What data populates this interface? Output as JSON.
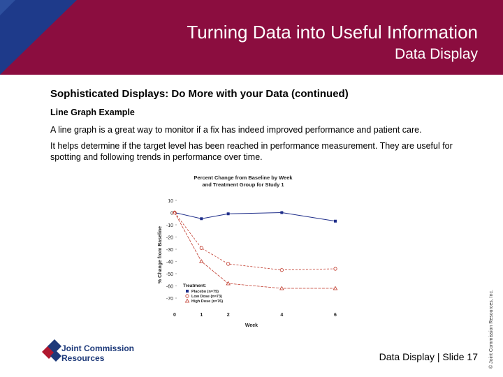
{
  "header": {
    "title": "Turning Data into Useful Information",
    "subtitle": "Data Display"
  },
  "content": {
    "heading": "Sophisticated Displays: Do More with your Data (continued)",
    "subheading": "Line Graph Example",
    "paragraph1": "A line graph is a great way to monitor if a fix has indeed improved performance and patient care.",
    "paragraph2": "It helps determine if the target level has been reached in performance measurement. They are useful for spotting and following trends in performance over time."
  },
  "chart_data": {
    "type": "line",
    "title_line1": "Percent Change from Baseline by Week",
    "title_line2": "and Treatment Group for Study 1",
    "xlabel": "Week",
    "ylabel": "% Change from Baseline",
    "x": [
      0,
      1,
      2,
      4,
      6
    ],
    "x_ticks": [
      "0",
      "1",
      "2",
      "4",
      "6"
    ],
    "y_ticks": [
      "10",
      "0",
      "-10",
      "-20",
      "-30",
      "-40",
      "-50",
      "-60",
      "-70"
    ],
    "ylim": [
      -70,
      10
    ],
    "legend_title": "Treatment:",
    "legend_placement": "bottom-left",
    "series": [
      {
        "name": "Placebo (n=75)",
        "values": [
          0,
          -5,
          -1,
          0,
          -7
        ],
        "color": "#1f2e8a",
        "marker": "square"
      },
      {
        "name": "Low Dose (n=73)",
        "values": [
          0,
          -29,
          -42,
          -47,
          -46
        ],
        "color": "#c0392b",
        "marker": "circle"
      },
      {
        "name": "High Dose (n=76)",
        "values": [
          0,
          -40,
          -58,
          -62,
          -62
        ],
        "color": "#c0392b",
        "marker": "triangle"
      }
    ]
  },
  "footer": {
    "logo_line1": "Joint Commission",
    "logo_line2": "Resources",
    "slide_label": "Data Display | Slide 17",
    "copyright": "© Joint Commission Resources, Inc."
  },
  "colors": {
    "header_bg": "#8b0d3f",
    "header_corner": "#1e3a8a",
    "logo_blue": "#1e3a7a",
    "logo_red": "#b0182f"
  }
}
